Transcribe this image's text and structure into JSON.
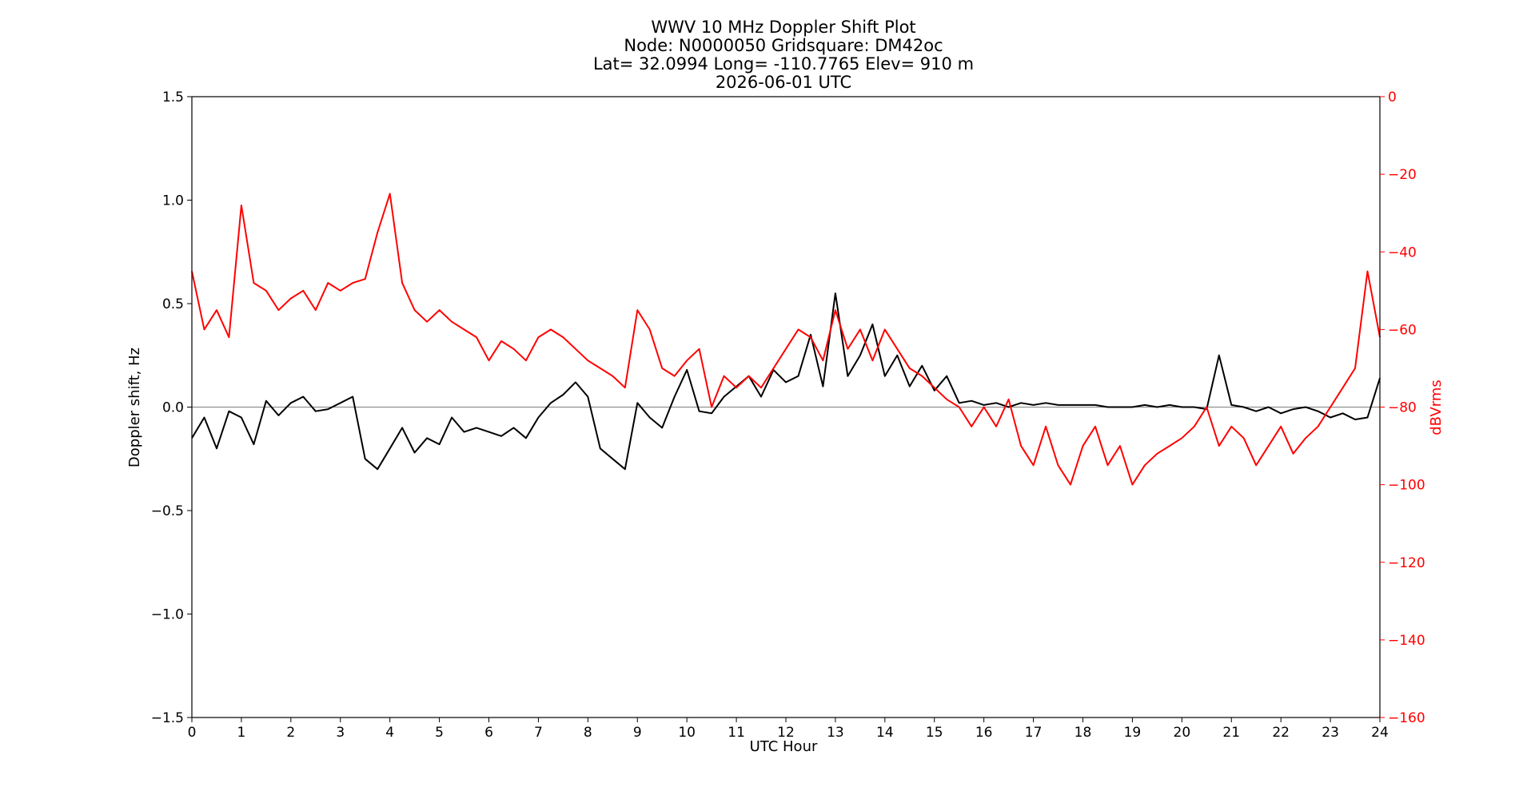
{
  "title_lines": [
    "WWV 10 MHz Doppler Shift Plot",
    "Node:  N0000050     Gridsquare:  DM42oc",
    "Lat= 32.0994    Long= -110.7765    Elev= 910 m",
    "2026-06-01  UTC"
  ],
  "chart_data": {
    "type": "line",
    "xlabel": "UTC Hour",
    "ylabel_left": "Doppler shift, Hz",
    "ylabel_right": "dBVrms",
    "xlim": [
      0,
      24
    ],
    "ylim_left": [
      -1.5,
      1.5
    ],
    "ylim_right": [
      -160,
      0
    ],
    "x_ticks": [
      "0",
      "1",
      "2",
      "3",
      "4",
      "5",
      "6",
      "7",
      "8",
      "9",
      "10",
      "11",
      "12",
      "13",
      "14",
      "15",
      "16",
      "17",
      "18",
      "19",
      "20",
      "21",
      "22",
      "23",
      "24"
    ],
    "y_ticks_left": [
      "1.5",
      "1.0",
      "0.5",
      "0.0",
      "−0.5",
      "−1.0",
      "−1.5"
    ],
    "y_ticks_right": [
      "0",
      "−20",
      "−40",
      "−60",
      "−80",
      "−100",
      "−120",
      "−140",
      "−160"
    ],
    "zero_line": true,
    "grid": false,
    "colors": {
      "doppler": "#000000",
      "power": "#ff0000",
      "right_axis": "#ff0000",
      "zero_line": "#808080"
    },
    "series": [
      {
        "axis": "left",
        "color": "#000000",
        "x": [
          0,
          0.25,
          0.5,
          0.75,
          1,
          1.25,
          1.5,
          1.75,
          2,
          2.25,
          2.5,
          2.75,
          3,
          3.25,
          3.5,
          3.75,
          4,
          4.25,
          4.5,
          4.75,
          5,
          5.25,
          5.5,
          5.75,
          6,
          6.25,
          6.5,
          6.75,
          7,
          7.25,
          7.5,
          7.75,
          8,
          8.25,
          8.5,
          8.75,
          9,
          9.25,
          9.5,
          9.75,
          10,
          10.25,
          10.5,
          10.75,
          11,
          11.25,
          11.5,
          11.75,
          12,
          12.25,
          12.5,
          12.75,
          13,
          13.25,
          13.5,
          13.75,
          14,
          14.25,
          14.5,
          14.75,
          15,
          15.25,
          15.5,
          15.75,
          16,
          16.25,
          16.5,
          16.75,
          17,
          17.25,
          17.5,
          17.75,
          18,
          18.25,
          18.5,
          18.75,
          19,
          19.25,
          19.5,
          19.75,
          20,
          20.25,
          20.5,
          20.75,
          21,
          21.25,
          21.5,
          21.75,
          22,
          22.25,
          22.5,
          22.75,
          23,
          23.25,
          23.5,
          23.75,
          24
        ],
        "values": [
          -0.15,
          -0.05,
          -0.2,
          -0.02,
          -0.05,
          -0.18,
          0.03,
          -0.04,
          0.02,
          0.05,
          -0.02,
          -0.01,
          0.02,
          0.05,
          -0.25,
          -0.3,
          -0.2,
          -0.1,
          -0.22,
          -0.15,
          -0.18,
          -0.05,
          -0.12,
          -0.1,
          -0.12,
          -0.14,
          -0.1,
          -0.15,
          -0.05,
          0.02,
          0.06,
          0.12,
          0.05,
          -0.2,
          -0.25,
          -0.3,
          0.02,
          -0.05,
          -0.1,
          0.05,
          0.18,
          -0.02,
          -0.03,
          0.05,
          0.1,
          0.15,
          0.05,
          0.18,
          0.12,
          0.15,
          0.35,
          0.1,
          0.55,
          0.15,
          0.25,
          0.4,
          0.15,
          0.25,
          0.1,
          0.2,
          0.08,
          0.15,
          0.02,
          0.03,
          0.01,
          0.02,
          0,
          0.02,
          0.01,
          0.02,
          0.01,
          0.01,
          0.01,
          0.01,
          0,
          0,
          0,
          0.01,
          0,
          0.01,
          0,
          0,
          -0.01,
          0.25,
          0.01,
          0,
          -0.02,
          0,
          -0.03,
          -0.01,
          0,
          -0.02,
          -0.05,
          -0.03,
          -0.06,
          -0.05,
          0.14
        ]
      },
      {
        "axis": "right",
        "color": "#ff0000",
        "x": [
          0,
          0.25,
          0.5,
          0.75,
          1,
          1.25,
          1.5,
          1.75,
          2,
          2.25,
          2.5,
          2.75,
          3,
          3.25,
          3.5,
          3.75,
          4,
          4.25,
          4.5,
          4.75,
          5,
          5.25,
          5.5,
          5.75,
          6,
          6.25,
          6.5,
          6.75,
          7,
          7.25,
          7.5,
          7.75,
          8,
          8.25,
          8.5,
          8.75,
          9,
          9.25,
          9.5,
          9.75,
          10,
          10.25,
          10.5,
          10.75,
          11,
          11.25,
          11.5,
          11.75,
          12,
          12.25,
          12.5,
          12.75,
          13,
          13.25,
          13.5,
          13.75,
          14,
          14.25,
          14.5,
          14.75,
          15,
          15.25,
          15.5,
          15.75,
          16,
          16.25,
          16.5,
          16.75,
          17,
          17.25,
          17.5,
          17.75,
          18,
          18.25,
          18.5,
          18.75,
          19,
          19.25,
          19.5,
          19.75,
          20,
          20.25,
          20.5,
          20.75,
          21,
          21.25,
          21.5,
          21.75,
          22,
          22.25,
          22.5,
          22.75,
          23,
          23.25,
          23.5,
          23.75,
          24
        ],
        "values": [
          -45,
          -60,
          -55,
          -62,
          -28,
          -48,
          -50,
          -55,
          -52,
          -50,
          -55,
          -48,
          -50,
          -48,
          -47,
          -35,
          -25,
          -48,
          -55,
          -58,
          -55,
          -58,
          -60,
          -62,
          -68,
          -63,
          -65,
          -68,
          -62,
          -60,
          -62,
          -65,
          -68,
          -70,
          -72,
          -75,
          -55,
          -60,
          -70,
          -72,
          -68,
          -65,
          -80,
          -72,
          -75,
          -72,
          -75,
          -70,
          -65,
          -60,
          -62,
          -68,
          -55,
          -65,
          -60,
          -68,
          -60,
          -65,
          -70,
          -72,
          -75,
          -78,
          -80,
          -85,
          -80,
          -85,
          -78,
          -90,
          -95,
          -85,
          -95,
          -100,
          -90,
          -85,
          -95,
          -90,
          -100,
          -95,
          -92,
          -90,
          -88,
          -85,
          -80,
          -90,
          -85,
          -88,
          -95,
          -90,
          -85,
          -92,
          -88,
          -85,
          -80,
          -75,
          -70,
          -45,
          -62
        ]
      }
    ]
  }
}
